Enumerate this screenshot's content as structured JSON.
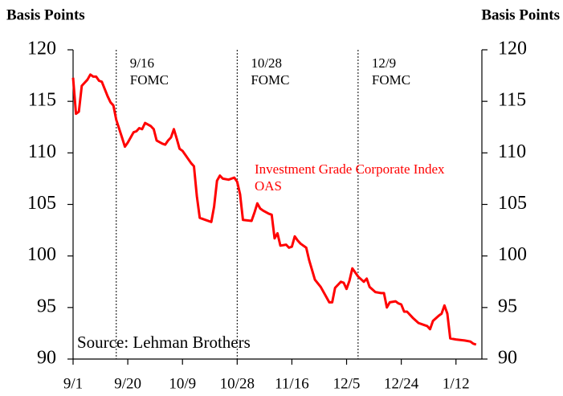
{
  "chart_data": {
    "type": "line",
    "ylabel": "Basis Points",
    "y2label": "Basis Points",
    "source": "Source: Lehman Brothers",
    "x": [
      "9/1",
      "9/2",
      "9/3",
      "9/4",
      "9/6",
      "9/7",
      "9/8",
      "9/9",
      "9/10",
      "9/11",
      "9/13",
      "9/14",
      "9/15",
      "9/16",
      "9/18",
      "9/19",
      "9/20",
      "9/21",
      "9/22",
      "9/23",
      "9/24",
      "9/25",
      "9/26",
      "9/28",
      "9/29",
      "9/30",
      "10/2",
      "10/3",
      "10/4",
      "10/5",
      "10/6",
      "10/7",
      "10/8",
      "10/9",
      "10/10",
      "10/12",
      "10/13",
      "10/14",
      "10/15",
      "10/17",
      "10/19",
      "10/20",
      "10/21",
      "10/22",
      "10/23",
      "10/25",
      "10/27",
      "10/28",
      "10/29",
      "10/30",
      "11/2",
      "11/3",
      "11/4",
      "11/5",
      "11/6",
      "11/8",
      "11/9",
      "11/10",
      "11/11",
      "11/12",
      "11/14",
      "11/15",
      "11/16",
      "11/17",
      "11/18",
      "11/19",
      "11/21",
      "11/22",
      "11/24",
      "11/26",
      "11/27",
      "11/29",
      "11/30",
      "12/1",
      "12/3",
      "12/4",
      "12/5",
      "12/6",
      "12/7",
      "12/9",
      "12/11",
      "12/12",
      "12/13",
      "12/15",
      "12/17",
      "12/18",
      "12/19",
      "12/20",
      "12/22",
      "12/23",
      "12/24",
      "12/25",
      "12/26",
      "12/28",
      "12/30",
      "1/1",
      "1/2",
      "1/3",
      "1/4",
      "1/6",
      "1/7",
      "1/8",
      "1/9",
      "1/10",
      "1/12",
      "1/15",
      "1/17",
      "1/18",
      "1/19"
    ],
    "series": [
      {
        "name": "Investment Grade Corporate Index OAS",
        "color": "#ff0000",
        "values": [
          117.3,
          113.8,
          114.0,
          116.5,
          117.1,
          117.6,
          117.4,
          117.4,
          117.0,
          116.9,
          115.5,
          114.9,
          114.6,
          113.2,
          111.5,
          110.6,
          111.0,
          111.5,
          112.0,
          112.1,
          112.4,
          112.3,
          112.9,
          112.6,
          112.3,
          111.2,
          110.9,
          110.8,
          111.2,
          111.5,
          112.3,
          111.4,
          110.4,
          110.2,
          109.8,
          109.0,
          108.7,
          105.8,
          103.7,
          103.5,
          103.3,
          104.8,
          107.3,
          107.8,
          107.5,
          107.4,
          107.6,
          107.2,
          106.0,
          103.5,
          103.4,
          104.2,
          105.1,
          104.6,
          104.4,
          104.1,
          104.0,
          101.7,
          102.2,
          101.0,
          101.1,
          100.8,
          100.9,
          101.9,
          101.5,
          101.2,
          100.8,
          99.6,
          97.7,
          97.0,
          96.5,
          95.5,
          95.5,
          96.9,
          97.5,
          97.4,
          96.8,
          97.6,
          98.8,
          98.0,
          97.5,
          97.8,
          97.0,
          96.5,
          96.4,
          96.4,
          95.0,
          95.5,
          95.6,
          95.4,
          95.3,
          94.6,
          94.6,
          94.0,
          93.5,
          93.3,
          93.2,
          92.9,
          93.7,
          94.2,
          94.4,
          95.2,
          94.4,
          92.0,
          91.9,
          91.8,
          91.7,
          91.5,
          91.4
        ]
      }
    ],
    "events": [
      {
        "x": "9/16",
        "label": "9/16 FOMC"
      },
      {
        "x": "10/28",
        "label": "10/28 FOMC"
      },
      {
        "x": "12/9",
        "label": "12/9 FOMC"
      }
    ],
    "xlim": [
      "9/1",
      "1/21"
    ],
    "xticks": [
      "9/1",
      "9/20",
      "10/9",
      "10/28",
      "11/16",
      "12/5",
      "12/24",
      "1/12"
    ],
    "ylim": [
      90,
      120
    ],
    "yticks": [
      90,
      95,
      100,
      105,
      110,
      115,
      120
    ],
    "y2lim": [
      90,
      120
    ],
    "y2ticks": [
      90,
      95,
      100,
      105,
      110,
      115,
      120
    ]
  }
}
